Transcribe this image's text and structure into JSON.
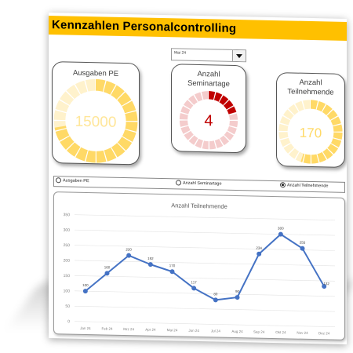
{
  "header": {
    "title": "Kennzahlen Personalcontrolling"
  },
  "month_select": {
    "value": "Mai 24"
  },
  "kpis": [
    {
      "title": [
        "Ausgaben PE"
      ],
      "value": "15000",
      "fraction": 0.72,
      "color": "#ffd966",
      "track": "#fff2cc",
      "value_color": "#ffe699"
    },
    {
      "title": [
        "Anzahl",
        "Seminartage"
      ],
      "value": "4",
      "fraction": 0.2,
      "color": "#c00000",
      "track": "#f4cccc",
      "value_color": "#c00000"
    },
    {
      "title": [
        "Anzahl",
        "Teilnehmende"
      ],
      "value": "170",
      "fraction": 0.55,
      "color": "#ffd966",
      "track": "#fff2cc",
      "value_color": "#ffd966"
    }
  ],
  "options": [
    {
      "label": "Ausgaben PE",
      "selected": false
    },
    {
      "label": "Anzahl Seminartage",
      "selected": false
    },
    {
      "label": "Anzahl Teilnehmende",
      "selected": true
    }
  ],
  "chart_data": {
    "type": "line",
    "title": "Anzahl Teilnehmende",
    "categories": [
      "Jan 24",
      "Feb 24",
      "Mrz 24",
      "Apr 24",
      "Mai 24",
      "Jun 24",
      "Jul 24",
      "Aug 24",
      "Sep 24",
      "Okt 24",
      "Nov 24",
      "Dez 24"
    ],
    "values": [
      100,
      160,
      220,
      192,
      170,
      117,
      80,
      90,
      234,
      300,
      255,
      132
    ],
    "ylim": [
      0,
      350
    ],
    "yticks": [
      0,
      50,
      100,
      150,
      200,
      250,
      300,
      350
    ],
    "series_color": "#4472c4",
    "grid": true
  }
}
